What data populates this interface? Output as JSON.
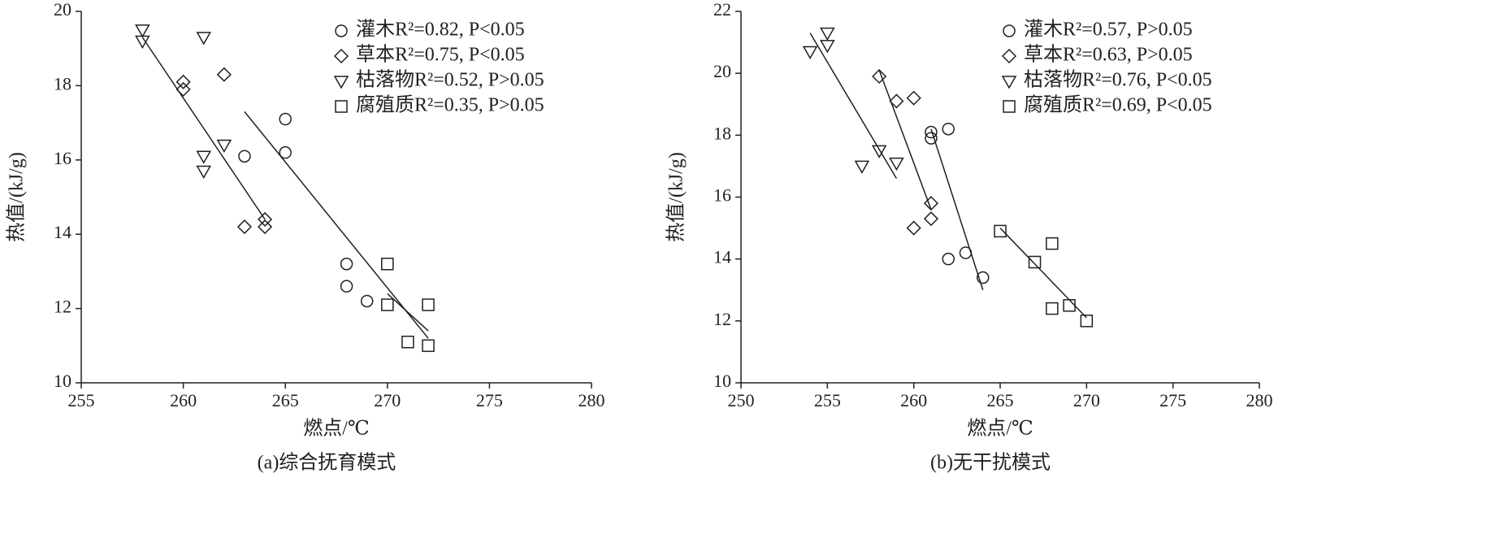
{
  "chart_data": [
    {
      "type": "scatter",
      "caption": "(a)综合抚育模式",
      "xlabel": "燃点/℃",
      "ylabel": "热值/(kJ/g)",
      "xlim": [
        255,
        280
      ],
      "xticks": [
        255,
        260,
        265,
        270,
        275,
        280
      ],
      "ylim": [
        10,
        20
      ],
      "yticks": [
        10,
        12,
        14,
        16,
        18,
        20
      ],
      "color": "#231f20",
      "series": [
        {
          "name": "灌木R²=0.82, P<0.05",
          "marker": "circle",
          "x": [
            263,
            265,
            265,
            268,
            268,
            269
          ],
          "values": [
            16.1,
            17.1,
            16.2,
            13.2,
            12.6,
            12.2
          ]
        },
        {
          "name": "草本R²=0.75, P<0.05",
          "marker": "diamond",
          "x": [
            260,
            260,
            262,
            263,
            264,
            264
          ],
          "values": [
            18.1,
            17.9,
            18.3,
            14.2,
            14.4,
            14.2
          ]
        },
        {
          "name": "枯落物R²=0.52, P>0.05",
          "marker": "triangle",
          "x": [
            258,
            258,
            261,
            262,
            261,
            261
          ],
          "values": [
            19.5,
            19.2,
            19.3,
            16.4,
            16.1,
            15.7
          ]
        },
        {
          "name": "腐殖质R²=0.35, P>0.05",
          "marker": "square",
          "x": [
            270,
            270,
            271,
            272,
            272
          ],
          "values": [
            13.2,
            12.1,
            11.1,
            12.1,
            11.0
          ]
        }
      ],
      "trendlines": [
        {
          "x": [
            258,
            264
          ],
          "y": [
            19.3,
            14.4
          ]
        },
        {
          "x": [
            263,
            272
          ],
          "y": [
            17.3,
            11.2
          ]
        },
        {
          "x": [
            270,
            272
          ],
          "y": [
            12.4,
            11.4
          ]
        }
      ]
    },
    {
      "type": "scatter",
      "caption": "(b)无干扰模式",
      "xlabel": "燃点/℃",
      "ylabel": "热值/(kJ/g)",
      "xlim": [
        250,
        280
      ],
      "xticks": [
        250,
        255,
        260,
        265,
        270,
        275,
        280
      ],
      "ylim": [
        10,
        22
      ],
      "yticks": [
        10,
        12,
        14,
        16,
        18,
        20,
        22
      ],
      "color": "#231f20",
      "series": [
        {
          "name": "灌木R²=0.57, P>0.05",
          "marker": "circle",
          "x": [
            261,
            261,
            262,
            262,
            263,
            264
          ],
          "values": [
            18.1,
            17.9,
            18.2,
            14.0,
            14.2,
            13.4
          ]
        },
        {
          "name": "草本R²=0.63, P>0.05",
          "marker": "diamond",
          "x": [
            258,
            259,
            260,
            261,
            261,
            260
          ],
          "values": [
            19.9,
            19.1,
            19.2,
            15.8,
            15.3,
            15.0
          ]
        },
        {
          "name": "枯落物R²=0.76, P<0.05",
          "marker": "triangle",
          "x": [
            254,
            255,
            255,
            258,
            259,
            257
          ],
          "values": [
            20.7,
            21.3,
            20.9,
            17.5,
            17.1,
            17.0
          ]
        },
        {
          "name": "腐殖质R²=0.69, P<0.05",
          "marker": "square",
          "x": [
            265,
            267,
            268,
            268,
            269,
            270
          ],
          "values": [
            14.9,
            13.9,
            14.5,
            12.4,
            12.5,
            12.0
          ]
        }
      ],
      "trendlines": [
        {
          "x": [
            254,
            259
          ],
          "y": [
            21.3,
            16.6
          ]
        },
        {
          "x": [
            258,
            261
          ],
          "y": [
            20.1,
            15.6
          ]
        },
        {
          "x": [
            261,
            264
          ],
          "y": [
            18.2,
            13.0
          ]
        },
        {
          "x": [
            265,
            270
          ],
          "y": [
            15.0,
            12.1
          ]
        }
      ]
    }
  ]
}
